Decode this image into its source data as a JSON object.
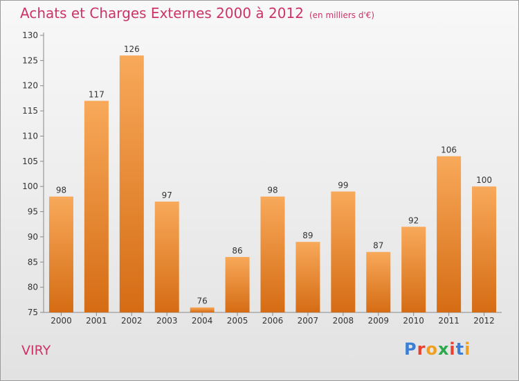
{
  "title": "Achats et Charges Externes 2000 à 2012",
  "subtitle": "(en milliers d'€)",
  "commune": "VIRY",
  "logo": {
    "text": "Proxiti",
    "colors": [
      "#3a7fd5",
      "#e8402f",
      "#f0a020",
      "#2aa84a",
      "#e8402f",
      "#3a7fd5",
      "#f0a020"
    ]
  },
  "chart_data": {
    "type": "bar",
    "categories": [
      "2000",
      "2001",
      "2002",
      "2003",
      "2004",
      "2005",
      "2006",
      "2007",
      "2008",
      "2009",
      "2010",
      "2011",
      "2012"
    ],
    "values": [
      98,
      117,
      126,
      97,
      76,
      86,
      98,
      89,
      99,
      87,
      92,
      106,
      100
    ],
    "ylim": [
      75,
      130
    ],
    "yticks": [
      75,
      80,
      85,
      90,
      95,
      100,
      105,
      110,
      115,
      120,
      125,
      130
    ],
    "grid": false,
    "colors": {
      "bar_light": "#f8a95a",
      "bar_dark": "#d56c14",
      "axis": "#888888",
      "text": "#333333"
    }
  }
}
